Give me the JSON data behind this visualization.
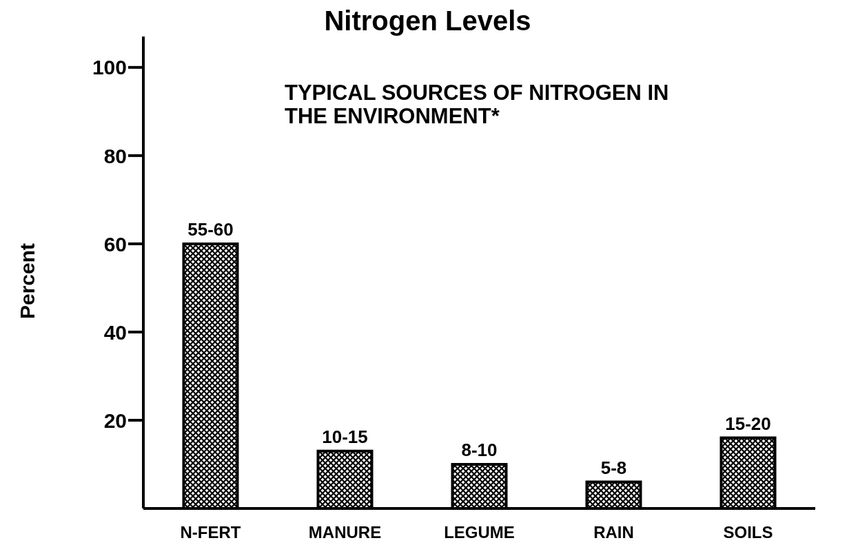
{
  "chart_data": {
    "type": "bar",
    "title": "Nitrogen Levels",
    "ylabel": "Percent",
    "annotations": [
      "TYPICAL SOURCES OF NITROGEN IN THE ENVIRONMENT*"
    ],
    "categories": [
      "N-FERT",
      "MANURE",
      "LEGUME",
      "RAIN",
      "SOILS"
    ],
    "values": [
      60,
      13,
      10,
      6,
      16
    ],
    "value_labels": [
      "55-60",
      "10-15",
      "8-10",
      "5-8",
      "15-20"
    ],
    "color": "#000000",
    "ylim": [
      0,
      107
    ],
    "yticks": [
      20,
      40,
      60,
      80,
      100
    ],
    "grid": false
  }
}
